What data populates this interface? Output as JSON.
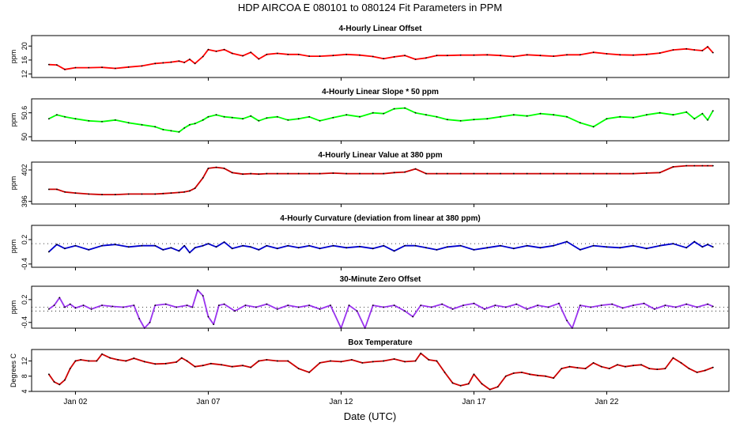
{
  "figure_title": "HDP   AIRCOA E   080101 to 080124   Fit Parameters in PPM",
  "xlabel": "Date (UTC)",
  "x_ticks": [
    {
      "day": 2,
      "label": "Jan 02"
    },
    {
      "day": 7,
      "label": "Jan 07"
    },
    {
      "day": 12,
      "label": "Jan 12"
    },
    {
      "day": 17,
      "label": "Jan 17"
    },
    {
      "day": 22,
      "label": "Jan 22"
    }
  ],
  "x_range": [
    0.35,
    26.6
  ],
  "chart_data": [
    {
      "type": "line",
      "title": "4-Hourly Linear Offset",
      "ylabel": "ppm",
      "ylim": [
        11,
        23
      ],
      "yticks": [
        12,
        16,
        20
      ],
      "color": "#ff0000",
      "x": [
        1.0,
        1.3,
        1.6,
        2.0,
        2.5,
        3.0,
        3.5,
        4.0,
        4.5,
        5.0,
        5.3,
        5.6,
        5.9,
        6.1,
        6.3,
        6.5,
        6.8,
        7.0,
        7.3,
        7.6,
        7.9,
        8.3,
        8.6,
        8.9,
        9.2,
        9.6,
        10.0,
        10.4,
        10.8,
        11.2,
        11.7,
        12.2,
        12.7,
        13.2,
        13.6,
        14.0,
        14.4,
        14.8,
        15.2,
        15.6,
        16.0,
        16.5,
        17.0,
        17.5,
        18.0,
        18.5,
        19.0,
        19.5,
        20.0,
        20.5,
        21.0,
        21.5,
        22.0,
        22.5,
        23.0,
        23.5,
        24.0,
        24.5,
        25.0,
        25.3,
        25.6,
        25.8,
        26.0
      ],
      "y": [
        14.7,
        14.6,
        13.3,
        13.8,
        13.8,
        13.9,
        13.6,
        14.0,
        14.3,
        15.0,
        15.2,
        15.4,
        15.7,
        15.3,
        16.2,
        15.0,
        17.0,
        19.0,
        18.5,
        19.0,
        17.9,
        17.2,
        18.2,
        16.3,
        17.6,
        17.9,
        17.6,
        17.6,
        17.1,
        17.1,
        17.3,
        17.6,
        17.4,
        17.0,
        16.4,
        16.9,
        17.3,
        16.2,
        16.6,
        17.3,
        17.3,
        17.4,
        17.4,
        17.5,
        17.3,
        17.0,
        17.5,
        17.3,
        17.1,
        17.5,
        17.5,
        18.2,
        17.8,
        17.5,
        17.4,
        17.6,
        18.0,
        18.9,
        19.2,
        18.9,
        18.7,
        19.8,
        18.1
      ]
    },
    {
      "type": "line",
      "title": "4-Hourly Linear Slope * 50 ppm",
      "ylabel": "ppm",
      "ylim": [
        49.9,
        50.95
      ],
      "yticks": [
        50.0,
        50.6
      ],
      "color": "#00ff00",
      "x": [
        1.0,
        1.3,
        1.6,
        2.0,
        2.5,
        3.0,
        3.5,
        4.0,
        4.5,
        5.0,
        5.3,
        5.6,
        5.9,
        6.1,
        6.3,
        6.5,
        6.8,
        7.0,
        7.3,
        7.6,
        7.9,
        8.3,
        8.6,
        8.9,
        9.2,
        9.6,
        10.0,
        10.4,
        10.8,
        11.2,
        11.7,
        12.2,
        12.7,
        13.2,
        13.6,
        14.0,
        14.4,
        14.8,
        15.2,
        15.6,
        16.0,
        16.5,
        17.0,
        17.5,
        18.0,
        18.5,
        19.0,
        19.5,
        20.0,
        20.5,
        21.0,
        21.5,
        22.0,
        22.5,
        23.0,
        23.5,
        24.0,
        24.5,
        25.0,
        25.3,
        25.6,
        25.8,
        26.0
      ],
      "y": [
        50.45,
        50.55,
        50.5,
        50.45,
        50.4,
        50.38,
        50.42,
        50.35,
        50.3,
        50.25,
        50.18,
        50.15,
        50.12,
        50.22,
        50.3,
        50.33,
        50.42,
        50.5,
        50.55,
        50.5,
        50.48,
        50.45,
        50.52,
        50.4,
        50.47,
        50.5,
        50.42,
        50.45,
        50.5,
        50.4,
        50.48,
        50.55,
        50.5,
        50.6,
        50.58,
        50.7,
        50.72,
        50.6,
        50.55,
        50.5,
        50.43,
        50.4,
        50.43,
        50.45,
        50.5,
        50.55,
        50.52,
        50.58,
        50.55,
        50.5,
        50.35,
        50.25,
        50.45,
        50.5,
        50.48,
        50.55,
        50.6,
        50.55,
        50.62,
        50.45,
        50.58,
        50.42,
        50.65
      ]
    },
    {
      "type": "line",
      "title": "4-Hourly Linear Value at 380 ppm",
      "ylabel": "ppm",
      "ylim": [
        395.5,
        403.5
      ],
      "yticks": [
        396,
        402
      ],
      "color": "#cc0000",
      "x": [
        1.0,
        1.3,
        1.6,
        2.0,
        2.5,
        3.0,
        3.5,
        4.0,
        4.5,
        5.0,
        5.3,
        5.6,
        5.9,
        6.1,
        6.3,
        6.5,
        6.8,
        7.0,
        7.3,
        7.6,
        7.9,
        8.3,
        8.6,
        8.9,
        9.2,
        9.6,
        10.0,
        10.4,
        10.8,
        11.2,
        11.7,
        12.2,
        12.7,
        13.2,
        13.6,
        14.0,
        14.4,
        14.8,
        15.2,
        15.6,
        16.0,
        16.5,
        17.0,
        17.5,
        18.0,
        18.5,
        19.0,
        19.5,
        20.0,
        20.5,
        21.0,
        21.5,
        22.0,
        22.5,
        23.0,
        23.5,
        24.0,
        24.5,
        25.0,
        25.3,
        25.6,
        25.8,
        26.0
      ],
      "y": [
        398.3,
        398.3,
        397.8,
        397.6,
        397.4,
        397.3,
        397.3,
        397.4,
        397.4,
        397.4,
        397.5,
        397.6,
        397.7,
        397.8,
        398.0,
        398.5,
        400.5,
        402.3,
        402.5,
        402.3,
        401.5,
        401.2,
        401.3,
        401.2,
        401.3,
        401.3,
        401.3,
        401.3,
        401.3,
        401.3,
        401.4,
        401.3,
        401.3,
        401.3,
        401.3,
        401.5,
        401.6,
        402.2,
        401.3,
        401.3,
        401.3,
        401.3,
        401.3,
        401.3,
        401.3,
        401.3,
        401.3,
        401.3,
        401.3,
        401.3,
        401.3,
        401.3,
        401.3,
        401.3,
        401.3,
        401.4,
        401.5,
        402.6,
        402.8,
        402.8,
        402.8,
        402.8,
        402.8
      ]
    },
    {
      "type": "line",
      "title": "4-Hourly Curvature (deviation from linear at 380 ppm)",
      "ylabel": "ppm",
      "ylim": [
        -0.48,
        0.55
      ],
      "yticks": [
        -0.4,
        0.2
      ],
      "color": "#0000cc",
      "reference_line": 0.1,
      "x": [
        1.0,
        1.3,
        1.6,
        2.0,
        2.5,
        3.0,
        3.5,
        4.0,
        4.5,
        5.0,
        5.3,
        5.6,
        5.9,
        6.1,
        6.3,
        6.5,
        6.8,
        7.0,
        7.3,
        7.6,
        7.9,
        8.3,
        8.6,
        8.9,
        9.2,
        9.6,
        10.0,
        10.4,
        10.8,
        11.2,
        11.7,
        12.2,
        12.7,
        13.2,
        13.6,
        14.0,
        14.4,
        14.8,
        15.2,
        15.6,
        16.0,
        16.5,
        17.0,
        17.5,
        18.0,
        18.5,
        19.0,
        19.5,
        20.0,
        20.5,
        21.0,
        21.5,
        22.0,
        22.5,
        23.0,
        23.5,
        24.0,
        24.5,
        25.0,
        25.3,
        25.6,
        25.8,
        26.0
      ],
      "y": [
        -0.1,
        0.08,
        -0.02,
        0.05,
        -0.05,
        0.05,
        0.08,
        0.02,
        0.05,
        0.05,
        -0.05,
        0.0,
        -0.08,
        0.05,
        -0.12,
        0.0,
        0.05,
        0.1,
        0.02,
        0.14,
        -0.02,
        0.05,
        0.02,
        -0.05,
        0.05,
        -0.02,
        0.05,
        0.0,
        0.05,
        -0.02,
        0.05,
        0.0,
        0.03,
        -0.02,
        0.05,
        -0.08,
        0.05,
        0.05,
        0.0,
        -0.05,
        0.02,
        0.05,
        -0.05,
        0.0,
        0.05,
        -0.02,
        0.05,
        0.0,
        0.05,
        0.15,
        -0.05,
        0.05,
        0.02,
        0.0,
        0.05,
        -0.02,
        0.05,
        0.1,
        0.0,
        0.15,
        0.02,
        0.08,
        0.02
      ]
    },
    {
      "type": "line",
      "title": "30-Minute Zero Offset",
      "ylabel": "ppm",
      "ylim": [
        -0.55,
        0.55
      ],
      "yticks": [
        -0.4,
        0.2
      ],
      "color": "#9933ee",
      "reference_lines": [
        0.0,
        -0.1
      ],
      "x": [
        1.0,
        1.2,
        1.4,
        1.6,
        1.8,
        2.0,
        2.3,
        2.6,
        3.0,
        3.4,
        3.8,
        4.2,
        4.4,
        4.6,
        4.8,
        5.0,
        5.4,
        5.8,
        6.2,
        6.4,
        6.6,
        6.8,
        7.0,
        7.2,
        7.4,
        7.6,
        8.0,
        8.4,
        8.8,
        9.2,
        9.6,
        10.0,
        10.4,
        10.8,
        11.2,
        11.6,
        12.0,
        12.3,
        12.6,
        12.9,
        13.2,
        13.6,
        14.0,
        14.4,
        14.7,
        15.0,
        15.4,
        15.8,
        16.2,
        16.6,
        17.0,
        17.4,
        17.8,
        18.2,
        18.6,
        19.0,
        19.4,
        19.8,
        20.2,
        20.5,
        20.7,
        21.0,
        21.4,
        21.8,
        22.2,
        22.6,
        23.0,
        23.4,
        23.8,
        24.2,
        24.6,
        25.0,
        25.4,
        25.8,
        26.0
      ],
      "y": [
        -0.05,
        0.05,
        0.25,
        0.0,
        0.08,
        -0.02,
        0.05,
        -0.05,
        0.05,
        0.02,
        0.0,
        0.05,
        -0.3,
        -0.55,
        -0.4,
        0.05,
        0.08,
        0.0,
        0.05,
        0.0,
        0.45,
        0.3,
        -0.25,
        -0.45,
        0.05,
        0.08,
        -0.1,
        0.05,
        0.0,
        0.08,
        -0.05,
        0.05,
        0.0,
        0.05,
        -0.05,
        0.05,
        -0.55,
        0.05,
        -0.1,
        -0.55,
        0.05,
        0.0,
        0.05,
        -0.1,
        -0.25,
        0.05,
        0.0,
        0.08,
        -0.05,
        0.05,
        0.1,
        -0.05,
        0.05,
        0.0,
        0.08,
        -0.05,
        0.05,
        0.0,
        0.1,
        -0.35,
        -0.55,
        0.05,
        0.0,
        0.05,
        0.08,
        -0.02,
        0.05,
        0.1,
        -0.05,
        0.05,
        0.0,
        0.08,
        0.0,
        0.08,
        0.02
      ]
    },
    {
      "type": "line",
      "title": "Box Temperature",
      "ylabel": "Degrees C",
      "ylim": [
        4,
        15
      ],
      "yticks": [
        4,
        8,
        12
      ],
      "color": "#cc0000",
      "x": [
        1.0,
        1.2,
        1.4,
        1.6,
        1.8,
        2.0,
        2.2,
        2.5,
        2.8,
        3.0,
        3.3,
        3.6,
        3.9,
        4.2,
        4.6,
        5.0,
        5.4,
        5.8,
        6.0,
        6.2,
        6.5,
        6.8,
        7.1,
        7.5,
        7.9,
        8.3,
        8.6,
        8.9,
        9.2,
        9.6,
        10.0,
        10.4,
        10.8,
        11.2,
        11.6,
        12.0,
        12.4,
        12.8,
        13.2,
        13.6,
        14.0,
        14.4,
        14.8,
        15.0,
        15.3,
        15.6,
        15.9,
        16.2,
        16.5,
        16.8,
        17.0,
        17.3,
        17.6,
        17.9,
        18.2,
        18.5,
        18.8,
        19.1,
        19.4,
        19.7,
        20.0,
        20.3,
        20.6,
        20.9,
        21.2,
        21.5,
        21.8,
        22.1,
        22.4,
        22.7,
        23.0,
        23.3,
        23.6,
        23.9,
        24.2,
        24.5,
        24.8,
        25.1,
        25.4,
        25.7,
        26.0
      ],
      "y": [
        8.5,
        6.5,
        5.8,
        7.0,
        10.0,
        12.0,
        12.3,
        12.0,
        12.0,
        13.8,
        12.8,
        12.3,
        12.0,
        12.7,
        11.8,
        11.2,
        11.3,
        11.7,
        12.8,
        12.0,
        10.5,
        10.8,
        11.3,
        11.0,
        10.5,
        10.8,
        10.3,
        12.0,
        12.3,
        12.0,
        12.0,
        10.0,
        9.0,
        11.5,
        12.0,
        11.8,
        12.3,
        11.5,
        11.8,
        12.0,
        12.5,
        11.8,
        12.0,
        14.0,
        12.3,
        12.0,
        9.0,
        6.2,
        5.5,
        6.0,
        8.5,
        6.0,
        4.5,
        5.2,
        8.0,
        8.8,
        9.0,
        8.5,
        8.2,
        8.0,
        7.5,
        10.0,
        10.5,
        10.2,
        10.0,
        11.5,
        10.5,
        10.0,
        11.0,
        10.5,
        10.8,
        11.0,
        10.0,
        9.8,
        10.0,
        12.8,
        11.5,
        10.0,
        9.0,
        9.5,
        10.3
      ]
    }
  ]
}
